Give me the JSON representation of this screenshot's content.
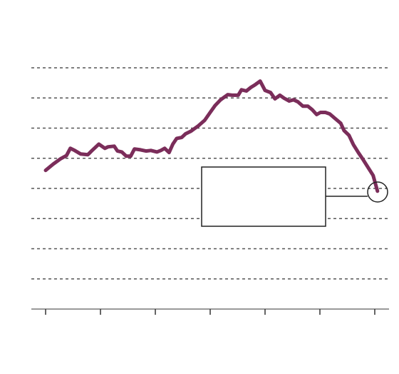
{
  "chart_data": {
    "type": "line",
    "color": "#7b2d5a",
    "grid": true,
    "xlim": [
      -0.26,
      6.26
    ],
    "xticks": [
      0,
      1,
      2,
      3,
      4,
      5,
      6
    ],
    "ylim": [
      0,
      8
    ],
    "yticks": [
      1,
      2,
      3,
      4,
      5,
      6,
      7,
      8
    ],
    "x": [
      0,
      0.14,
      0.27,
      0.38,
      0.45,
      0.53,
      0.64,
      0.77,
      0.86,
      0.97,
      1.08,
      1.14,
      1.25,
      1.31,
      1.39,
      1.47,
      1.55,
      1.62,
      1.73,
      1.83,
      1.92,
      2.03,
      2.1,
      2.17,
      2.25,
      2.32,
      2.39,
      2.48,
      2.55,
      2.65,
      2.78,
      2.9,
      3.0,
      3.09,
      3.19,
      3.32,
      3.4,
      3.51,
      3.57,
      3.66,
      3.74,
      3.82,
      3.91,
      4.0,
      4.1,
      4.18,
      4.27,
      4.35,
      4.44,
      4.52,
      4.6,
      4.69,
      4.78,
      4.86,
      4.94,
      5.01,
      5.1,
      5.18,
      5.27,
      5.38,
      5.44,
      5.53,
      5.61,
      5.7,
      5.79,
      5.88,
      5.97,
      6.05
    ],
    "values": [
      4.6,
      4.81,
      4.98,
      5.09,
      5.33,
      5.26,
      5.14,
      5.12,
      5.28,
      5.47,
      5.33,
      5.38,
      5.4,
      5.24,
      5.21,
      5.07,
      5.07,
      5.31,
      5.28,
      5.24,
      5.26,
      5.21,
      5.26,
      5.33,
      5.19,
      5.47,
      5.66,
      5.69,
      5.81,
      5.9,
      6.07,
      6.26,
      6.52,
      6.75,
      6.94,
      7.11,
      7.09,
      7.09,
      7.27,
      7.23,
      7.35,
      7.44,
      7.56,
      7.25,
      7.18,
      6.97,
      7.09,
      6.99,
      6.9,
      6.94,
      6.87,
      6.73,
      6.73,
      6.61,
      6.45,
      6.52,
      6.52,
      6.47,
      6.33,
      6.16,
      5.92,
      5.76,
      5.45,
      5.19,
      4.95,
      4.69,
      4.43,
      3.91
    ]
  }
}
